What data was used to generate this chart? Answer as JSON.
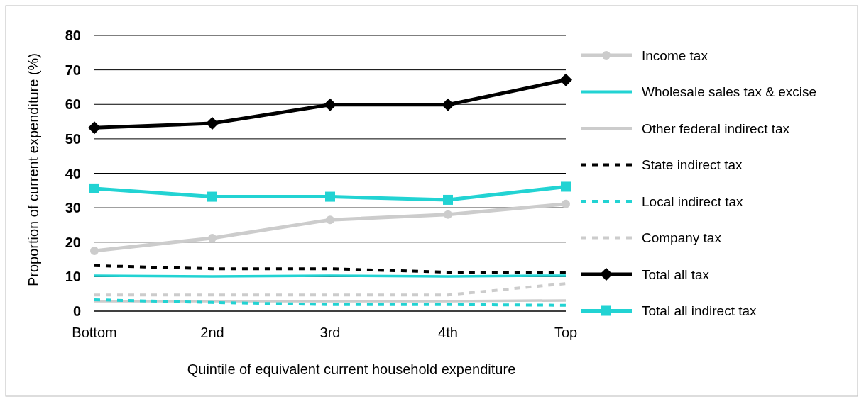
{
  "chart_data": {
    "type": "line",
    "xlabel": "Quintile of equivalent current household expenditure",
    "ylabel": "Proportion of current expenditure (%)",
    "categories": [
      "Bottom",
      "2nd",
      "3rd",
      "4th",
      "Top"
    ],
    "ylim": [
      0,
      80
    ],
    "yticks": [
      0,
      10,
      20,
      30,
      40,
      50,
      60,
      70,
      80
    ],
    "grid": "y",
    "legend": "right",
    "series": [
      {
        "name": "Income tax",
        "color": "#cccccc",
        "values": [
          17.5,
          21.2,
          26.5,
          28,
          31.1
        ],
        "marker": "circle",
        "line_style": "solid"
      },
      {
        "name": "Wholesale sales tax & excise",
        "color": "#22d3d3",
        "values": [
          10.3,
          10.1,
          10.3,
          10.1,
          10.3
        ],
        "marker": "none",
        "line_style": "solid"
      },
      {
        "name": "Other federal indirect tax",
        "color": "#cccccc",
        "values": [
          2.9,
          2.9,
          2.9,
          2.9,
          3.1
        ],
        "marker": "none",
        "line_style": "solid"
      },
      {
        "name": "State indirect tax",
        "color": "#000000",
        "values": [
          13.2,
          12.3,
          12.3,
          11.3,
          11.3
        ],
        "marker": "none",
        "line_style": "dashed"
      },
      {
        "name": "Local indirect tax",
        "color": "#22d3d3",
        "values": [
          3.3,
          2.5,
          1.9,
          1.9,
          1.7
        ],
        "marker": "none",
        "line_style": "dashed"
      },
      {
        "name": "Company tax",
        "color": "#cccccc",
        "values": [
          4.7,
          4.7,
          4.7,
          4.7,
          8
        ],
        "marker": "none",
        "line_style": "dashed"
      },
      {
        "name": "Total all tax",
        "color": "#000000",
        "values": [
          53.2,
          54.5,
          59.9,
          59.9,
          67.1
        ],
        "marker": "diamond",
        "line_style": "solid"
      },
      {
        "name": "Total all indirect tax",
        "color": "#22d3d3",
        "values": [
          35.6,
          33.2,
          33.2,
          32.3,
          36.1
        ],
        "marker": "square",
        "line_style": "solid"
      }
    ]
  }
}
